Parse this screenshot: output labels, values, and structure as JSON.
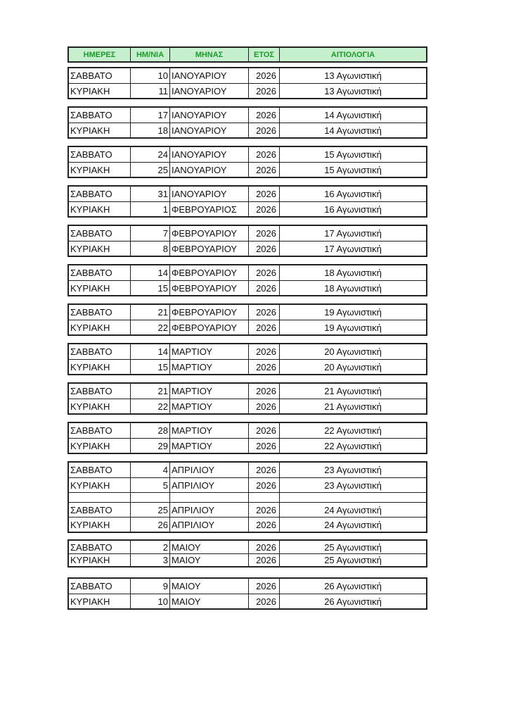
{
  "header": [
    "ΗΜΕΡΕΣ",
    "ΗΜ/ΝΙΑ",
    "ΜΗΝΑΣ",
    "ΕΤΟΣ",
    "ΑΙΤΙΟΛΟΓΙΑ"
  ],
  "colors": {
    "header_bg": "#c6efce",
    "header_text": "#1a9a2a",
    "border": "#222222"
  },
  "groups": [
    {
      "rows": [
        [
          "ΣΑΒΒΑΤΟ",
          "10",
          "ΙΑΝΟΥΑΡΙΟΥ",
          "2026",
          "13 Αγωνιστική"
        ],
        [
          "ΚΥΡΙΑΚΗ",
          "11",
          "ΙΑΝΟΥΑΡΙΟΥ",
          "2026",
          "13 Αγωνιστική"
        ]
      ]
    },
    {
      "rows": [
        [
          "ΣΑΒΒΑΤΟ",
          "17",
          "ΙΑΝΟΥΑΡΙΟΥ",
          "2026",
          "14 Αγωνιστική"
        ],
        [
          "ΚΥΡΙΑΚΗ",
          "18",
          "ΙΑΝΟΥΑΡΙΟΥ",
          "2026",
          "14 Αγωνιστική"
        ]
      ]
    },
    {
      "rows": [
        [
          "ΣΑΒΒΑΤΟ",
          "24",
          "ΙΑΝΟΥΑΡΙΟΥ",
          "2026",
          "15 Αγωνιστική"
        ],
        [
          "ΚΥΡΙΑΚΗ",
          "25",
          "ΙΑΝΟΥΑΡΙΟΥ",
          "2026",
          "15 Αγωνιστική"
        ]
      ]
    },
    {
      "rows": [
        [
          "ΣΑΒΒΑΤΟ",
          "31",
          "ΙΑΝΟΥΑΡΙΟΥ",
          "2026",
          "16 Αγωνιστική"
        ],
        [
          "ΚΥΡΙΑΚΗ",
          "1",
          "ΦΕΒΡΟΥΑΡΙΟΣ",
          "2026",
          "16 Αγωνιστική"
        ]
      ]
    },
    {
      "rows": [
        [
          "ΣΑΒΒΑΤΟ",
          "7",
          "ΦΕΒΡΟΥΑΡΙΟΥ",
          "2026",
          "17 Αγωνιστική"
        ],
        [
          "ΚΥΡΙΑΚΗ",
          "8",
          "ΦΕΒΡΟΥΑΡΙΟΥ",
          "2026",
          "17 Αγωνιστική"
        ]
      ]
    },
    {
      "rows": [
        [
          "ΣΑΒΒΑΤΟ",
          "14",
          "ΦΕΒΡΟΥΑΡΙΟΥ",
          "2026",
          "18 Αγωνιστική"
        ],
        [
          "ΚΥΡΙΑΚΗ",
          "15",
          "ΦΕΒΡΟΥΑΡΙΟΥ",
          "2026",
          "18 Αγωνιστική"
        ]
      ]
    },
    {
      "rows": [
        [
          "ΣΑΒΒΑΤΟ",
          "21",
          "ΦΕΒΡΟΥΑΡΙΟΥ",
          "2026",
          "19 Αγωνιστική"
        ],
        [
          "ΚΥΡΙΑΚΗ",
          "22",
          "ΦΕΒΡΟΥΑΡΙΟΥ",
          "2026",
          "19 Αγωνιστική"
        ]
      ]
    },
    {
      "rows": [
        [
          "ΣΑΒΒΑΤΟ",
          "14",
          "ΜΑΡΤΙΟΥ",
          "2026",
          "20 Αγωνιστική"
        ],
        [
          "ΚΥΡΙΑΚΗ",
          "15",
          "ΜΑΡΤΙΟΥ",
          "2026",
          "20 Αγωνιστική"
        ]
      ]
    },
    {
      "rows": [
        [
          "ΣΑΒΒΑΤΟ",
          "21",
          "ΜΑΡΤΙΟΥ",
          "2026",
          "21 Αγωνιστική"
        ],
        [
          "ΚΥΡΙΑΚΗ",
          "22",
          "ΜΑΡΤΙΟΥ",
          "2026",
          "21 Αγωνιστική"
        ]
      ]
    },
    {
      "rows": [
        [
          "ΣΑΒΒΑΤΟ",
          "28",
          "ΜΑΡΤΙΟΥ",
          "2026",
          "22 Αγωνιστική"
        ],
        [
          "ΚΥΡΙΑΚΗ",
          "29",
          "ΜΑΡΤΙΟΥ",
          "2026",
          "22 Αγωνιστική"
        ]
      ]
    },
    {
      "rows": [
        [
          "ΣΑΒΒΑΤΟ",
          "4",
          "ΑΠΡΙΛΙΟΥ",
          "2026",
          "23 Αγωνιστική"
        ],
        [
          "ΚΥΡΙΑΚΗ",
          "5",
          "ΑΠΡΙΛΙΟΥ",
          "2026",
          "23 Αγωνιστική"
        ],
        [
          "",
          "",
          "",
          "",
          ""
        ],
        [
          "ΣΑΒΒΑΤΟ",
          "25",
          "ΑΠΡΙΛΙΟΥ",
          "2026",
          "24 Αγωνιστική"
        ],
        [
          "ΚΥΡΙΑΚΗ",
          "26",
          "ΑΠΡΙΛΙΟΥ",
          "2026",
          "24 Αγωνιστική"
        ]
      ]
    },
    {
      "rows": [
        [
          "ΣΑΒΒΑΤΟ",
          "2",
          "ΜΑΙΟΥ",
          "2026",
          "25 Αγωνιστική"
        ],
        [
          "ΚΥΡΙΑΚΗ",
          "3",
          "ΜΑΙΟΥ",
          "2026",
          "25 Αγωνιστική"
        ]
      ]
    },
    {
      "rows": [
        [
          "ΣΑΒΒΑΤΟ",
          "9",
          "ΜΑΙΟΥ",
          "2026",
          "26 Αγωνιστική"
        ],
        [
          "ΚΥΡΙΑΚΗ",
          "10",
          "ΜΑΙΟΥ",
          "2026",
          "26 Αγωνιστική"
        ]
      ]
    }
  ]
}
